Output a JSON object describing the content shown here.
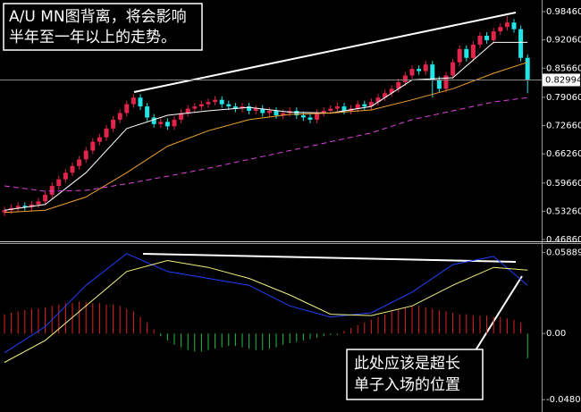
{
  "chart_data": [
    {
      "type": "candlestick",
      "annotation": [
        "A/U MN图背离，将会影响",
        "半年至一年以上的走势。"
      ],
      "ylim": [
        0.4646,
        1.011
      ],
      "yticks": [
        {
          "value": 0.9846,
          "label": "0.98460"
        },
        {
          "value": 0.9206,
          "label": "0.92060"
        },
        {
          "value": 0.8566,
          "label": "0.85660"
        },
        {
          "value": 0.7906,
          "label": "0.79060"
        },
        {
          "value": 0.7266,
          "label": "0.72660"
        },
        {
          "value": 0.6626,
          "label": "0.66260"
        },
        {
          "value": 0.5966,
          "label": "0.59660"
        },
        {
          "value": 0.5326,
          "label": "0.53260"
        },
        {
          "value": 0.4686,
          "label": "0.46860"
        }
      ],
      "last_price": 0.82994,
      "up_color": "#e0244a",
      "down_color": "#22e3e6",
      "open": [
        0.53,
        0.535,
        0.54,
        0.545,
        0.542,
        0.548,
        0.555,
        0.57,
        0.59,
        0.605,
        0.62,
        0.635,
        0.65,
        0.67,
        0.69,
        0.7,
        0.72,
        0.74,
        0.755,
        0.775,
        0.79,
        0.77,
        0.745,
        0.73,
        0.735,
        0.725,
        0.74,
        0.755,
        0.765,
        0.77,
        0.775,
        0.78,
        0.785,
        0.775,
        0.77,
        0.765,
        0.77,
        0.76,
        0.765,
        0.755,
        0.76,
        0.75,
        0.755,
        0.76,
        0.75,
        0.745,
        0.74,
        0.755,
        0.76,
        0.765,
        0.77,
        0.76,
        0.765,
        0.775,
        0.77,
        0.78,
        0.79,
        0.8,
        0.81,
        0.825,
        0.84,
        0.855,
        0.85,
        0.865,
        0.83,
        0.81,
        0.84,
        0.87,
        0.9,
        0.88,
        0.91,
        0.93,
        0.92,
        0.94,
        0.95,
        0.96,
        0.945,
        0.88
      ],
      "high": [
        0.543,
        0.548,
        0.553,
        0.553,
        0.556,
        0.563,
        0.578,
        0.598,
        0.613,
        0.628,
        0.643,
        0.658,
        0.678,
        0.698,
        0.708,
        0.728,
        0.748,
        0.763,
        0.783,
        0.798,
        0.798,
        0.778,
        0.753,
        0.743,
        0.743,
        0.748,
        0.763,
        0.773,
        0.778,
        0.783,
        0.788,
        0.793,
        0.793,
        0.783,
        0.778,
        0.778,
        0.778,
        0.773,
        0.773,
        0.768,
        0.768,
        0.763,
        0.768,
        0.768,
        0.758,
        0.753,
        0.763,
        0.768,
        0.773,
        0.778,
        0.778,
        0.773,
        0.783,
        0.783,
        0.788,
        0.798,
        0.808,
        0.818,
        0.833,
        0.848,
        0.863,
        0.863,
        0.873,
        0.873,
        0.838,
        0.848,
        0.878,
        0.908,
        0.908,
        0.918,
        0.938,
        0.938,
        0.948,
        0.958,
        0.975,
        0.968,
        0.953,
        0.888
      ],
      "low": [
        0.522,
        0.527,
        0.532,
        0.534,
        0.534,
        0.54,
        0.547,
        0.562,
        0.582,
        0.597,
        0.612,
        0.627,
        0.642,
        0.662,
        0.682,
        0.692,
        0.712,
        0.732,
        0.747,
        0.767,
        0.762,
        0.737,
        0.722,
        0.722,
        0.717,
        0.717,
        0.732,
        0.747,
        0.757,
        0.762,
        0.767,
        0.772,
        0.767,
        0.762,
        0.757,
        0.757,
        0.752,
        0.752,
        0.747,
        0.747,
        0.742,
        0.742,
        0.747,
        0.742,
        0.737,
        0.732,
        0.732,
        0.747,
        0.752,
        0.757,
        0.752,
        0.752,
        0.757,
        0.762,
        0.762,
        0.772,
        0.782,
        0.792,
        0.802,
        0.817,
        0.832,
        0.842,
        0.842,
        0.79,
        0.802,
        0.802,
        0.832,
        0.862,
        0.872,
        0.872,
        0.902,
        0.912,
        0.912,
        0.932,
        0.942,
        0.937,
        0.872,
        0.8
      ],
      "close": [
        0.535,
        0.54,
        0.545,
        0.542,
        0.548,
        0.555,
        0.57,
        0.59,
        0.605,
        0.62,
        0.635,
        0.65,
        0.67,
        0.69,
        0.7,
        0.72,
        0.74,
        0.755,
        0.775,
        0.79,
        0.77,
        0.745,
        0.73,
        0.735,
        0.725,
        0.74,
        0.755,
        0.765,
        0.77,
        0.775,
        0.78,
        0.785,
        0.775,
        0.77,
        0.765,
        0.77,
        0.76,
        0.765,
        0.755,
        0.76,
        0.75,
        0.755,
        0.76,
        0.75,
        0.745,
        0.74,
        0.755,
        0.76,
        0.765,
        0.77,
        0.76,
        0.765,
        0.775,
        0.77,
        0.78,
        0.79,
        0.8,
        0.81,
        0.825,
        0.84,
        0.855,
        0.85,
        0.865,
        0.83,
        0.81,
        0.84,
        0.87,
        0.9,
        0.88,
        0.91,
        0.93,
        0.92,
        0.94,
        0.95,
        0.96,
        0.945,
        0.88,
        0.82994
      ],
      "lines": [
        {
          "color": "#ffffff",
          "x": [
            0,
            6,
            12,
            18,
            24,
            30,
            36,
            42,
            48,
            54,
            60,
            66,
            72,
            77
          ],
          "values": [
            0.535,
            0.548,
            0.62,
            0.72,
            0.75,
            0.76,
            0.768,
            0.757,
            0.755,
            0.77,
            0.83,
            0.835,
            0.915,
            0.915
          ]
        },
        {
          "color": "#f0a030",
          "x": [
            0,
            6,
            12,
            18,
            24,
            30,
            36,
            42,
            48,
            54,
            60,
            66,
            72,
            77
          ],
          "values": [
            0.53,
            0.535,
            0.565,
            0.62,
            0.68,
            0.715,
            0.74,
            0.752,
            0.755,
            0.762,
            0.785,
            0.81,
            0.845,
            0.87
          ]
        },
        {
          "color": "#e040e0",
          "dashed": true,
          "x": [
            0,
            6,
            12,
            18,
            24,
            30,
            36,
            42,
            48,
            54,
            60,
            66,
            72,
            77
          ],
          "values": [
            0.59,
            0.578,
            0.58,
            0.595,
            0.612,
            0.63,
            0.65,
            0.67,
            0.69,
            0.71,
            0.74,
            0.76,
            0.78,
            0.79
          ]
        }
      ]
    },
    {
      "type": "macd",
      "annotation": [
        "此处应该是超长",
        "单子入场的位置"
      ],
      "ylim": [
        -0.057,
        0.065
      ],
      "yticks": [
        0.05889,
        {
          "value": 0,
          "label": "0.00"
        },
        -0.04807
      ],
      "up_color": "#e02020",
      "down_color": "#20c040",
      "histogram": [
        0.014,
        0.015,
        0.016,
        0.017,
        0.018,
        0.018,
        0.019,
        0.02,
        0.021,
        0.022,
        0.022,
        0.023,
        0.023,
        0.022,
        0.022,
        0.021,
        0.021,
        0.02,
        0.018,
        0.016,
        0.012,
        0.008,
        0.003,
        -0.002,
        -0.005,
        -0.008,
        -0.01,
        -0.012,
        -0.013,
        -0.013,
        -0.012,
        -0.011,
        -0.01,
        -0.009,
        -0.009,
        -0.01,
        -0.011,
        -0.012,
        -0.012,
        -0.011,
        -0.01,
        -0.008,
        -0.007,
        -0.006,
        -0.005,
        -0.004,
        -0.003,
        -0.002,
        -0.001,
        -0.001,
        0.002,
        0.004,
        0.006,
        0.008,
        0.01,
        0.012,
        0.014,
        0.016,
        0.018,
        0.019,
        0.02,
        0.02,
        0.019,
        0.018,
        0.017,
        0.016,
        0.015,
        0.014,
        0.014,
        0.013,
        0.013,
        0.013,
        0.012,
        0.012,
        0.011,
        0.01,
        0.008,
        -0.018
      ],
      "lines": [
        {
          "color": "#2040ff",
          "x": [
            0,
            6,
            12,
            18,
            24,
            30,
            36,
            42,
            48,
            54,
            60,
            66,
            72,
            77
          ],
          "values": [
            -0.014,
            0.005,
            0.035,
            0.058,
            0.045,
            0.04,
            0.035,
            0.02,
            0.012,
            0.015,
            0.03,
            0.05,
            0.056,
            0.035
          ]
        },
        {
          "color": "#f0f080",
          "x": [
            0,
            6,
            12,
            18,
            24,
            30,
            36,
            42,
            48,
            54,
            60,
            66,
            72,
            77
          ],
          "values": [
            -0.021,
            -0.005,
            0.02,
            0.045,
            0.053,
            0.048,
            0.04,
            0.028,
            0.014,
            0.013,
            0.02,
            0.035,
            0.048,
            0.046
          ]
        }
      ]
    }
  ]
}
